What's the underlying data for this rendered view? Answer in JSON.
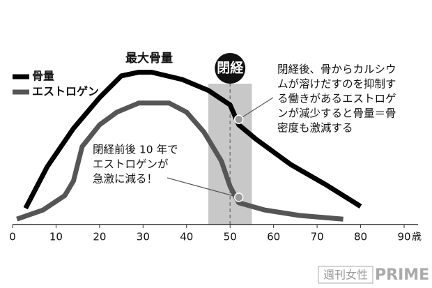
{
  "chart_data": {
    "type": "line",
    "xlim": [
      0,
      90
    ],
    "xticks": [
      0,
      10,
      20,
      30,
      40,
      50,
      60,
      70,
      80,
      90
    ],
    "x_unit": "歳",
    "ylim": [
      0,
      100
    ],
    "series": [
      {
        "name": "骨量",
        "color": "#000000",
        "x": [
          3,
          8,
          14,
          20,
          25,
          29,
          32,
          39,
          45,
          50,
          52,
          56,
          64,
          72,
          80
        ],
        "values": [
          9,
          32,
          53,
          70,
          82,
          84,
          84,
          80,
          74,
          66,
          55,
          47,
          33,
          22,
          10
        ]
      },
      {
        "name": "エストロゲン",
        "color": "#555555",
        "x": [
          1,
          7,
          12,
          14,
          16,
          20,
          24,
          29,
          36,
          40,
          44,
          48,
          50,
          52,
          58,
          66,
          76
        ],
        "values": [
          3,
          8,
          16,
          24,
          43,
          55,
          62,
          67,
          67,
          62,
          51,
          35,
          21,
          12,
          8,
          5,
          3
        ]
      }
    ],
    "highlight_range": [
      45,
      55
    ],
    "menopause": {
      "label": "閉経",
      "x": 50
    },
    "peak_label": "最大骨量",
    "annotations": [
      {
        "lines": [
          "閉経後、骨からカルシウ",
          "ムが溶けだすのを抑制す",
          "る働きがあるエストロゲ",
          "ンが減少すると骨量＝骨",
          "密度も激減する"
        ],
        "point": [
          52,
          58
        ]
      },
      {
        "lines": [
          "閉経前後 10 年で",
          "エストロゲンが",
          "急激に減る！"
        ],
        "point": [
          52,
          15
        ]
      }
    ],
    "watermark": {
      "brand": "週刊女性",
      "suffix": "PRIME"
    }
  }
}
